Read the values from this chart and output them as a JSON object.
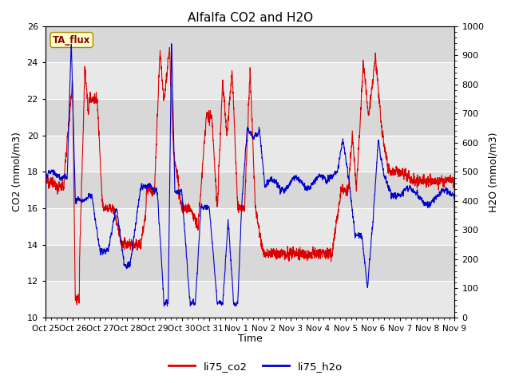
{
  "title": "Alfalfa CO2 and H2O",
  "xlabel": "Time",
  "ylabel_left": "CO2 (mmol/m3)",
  "ylabel_right": "H2O (mmol/m3)",
  "legend_label1": "li75_co2",
  "legend_label2": "li75_h2o",
  "annotation": "TA_flux",
  "color_co2": "#dd0000",
  "color_h2o": "#0000cc",
  "ylim_left": [
    10,
    26
  ],
  "ylim_right": [
    0,
    1000
  ],
  "yticks_left": [
    10,
    12,
    14,
    16,
    18,
    20,
    22,
    24,
    26
  ],
  "yticks_right": [
    0,
    100,
    200,
    300,
    400,
    500,
    600,
    700,
    800,
    900,
    1000
  ],
  "xtick_labels": [
    "Oct 25",
    "Oct 26",
    "Oct 27",
    "Oct 28",
    "Oct 29",
    "Oct 30",
    "Oct 31",
    "Nov 1",
    "Nov 2",
    "Nov 3",
    "Nov 4",
    "Nov 5",
    "Nov 6",
    "Nov 7",
    "Nov 8",
    "Nov 9"
  ],
  "plot_bg_color": "#e8e8e8",
  "band_color_dark": "#d8d8d8",
  "title_fontsize": 11,
  "axis_fontsize": 9,
  "tick_fontsize": 8,
  "line_width": 0.8,
  "n_points": 4000
}
